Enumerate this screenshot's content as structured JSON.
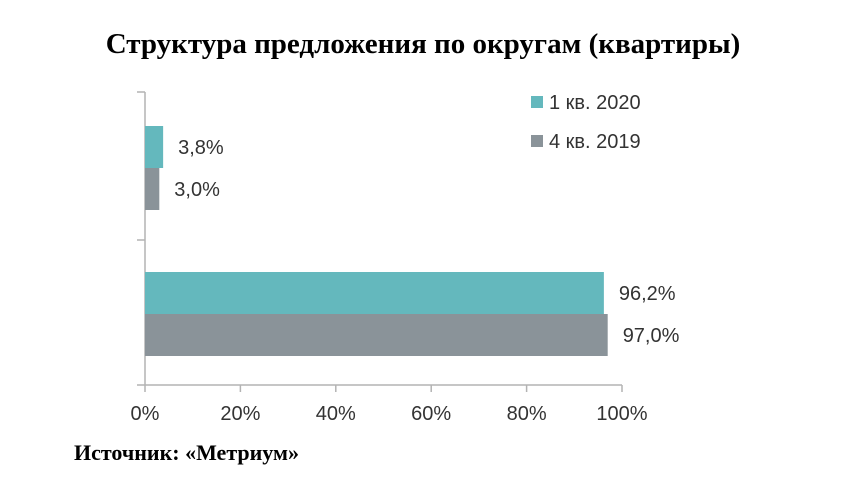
{
  "title": "Структура предложения по округам (квартиры)",
  "source": "Источник: «Метриум»",
  "chart_data": {
    "type": "bar",
    "orientation": "horizontal",
    "title": "Структура предложения по округам (квартиры)",
    "categories": [
      "",
      ""
    ],
    "series": [
      {
        "name": "1 кв. 2020",
        "color": "#64b8bd",
        "values": [
          3.8,
          96.2
        ],
        "labels": [
          "3,8%",
          "96,2%"
        ]
      },
      {
        "name": "4 кв. 2019",
        "color": "#8a9399",
        "values": [
          3.0,
          97.0
        ],
        "labels": [
          "3,0%",
          "97,0%"
        ]
      }
    ],
    "xlim": [
      0,
      100
    ],
    "xticks": [
      "0%",
      "20%",
      "40%",
      "60%",
      "80%",
      "100%"
    ],
    "grid": false,
    "legend": "top-right"
  }
}
